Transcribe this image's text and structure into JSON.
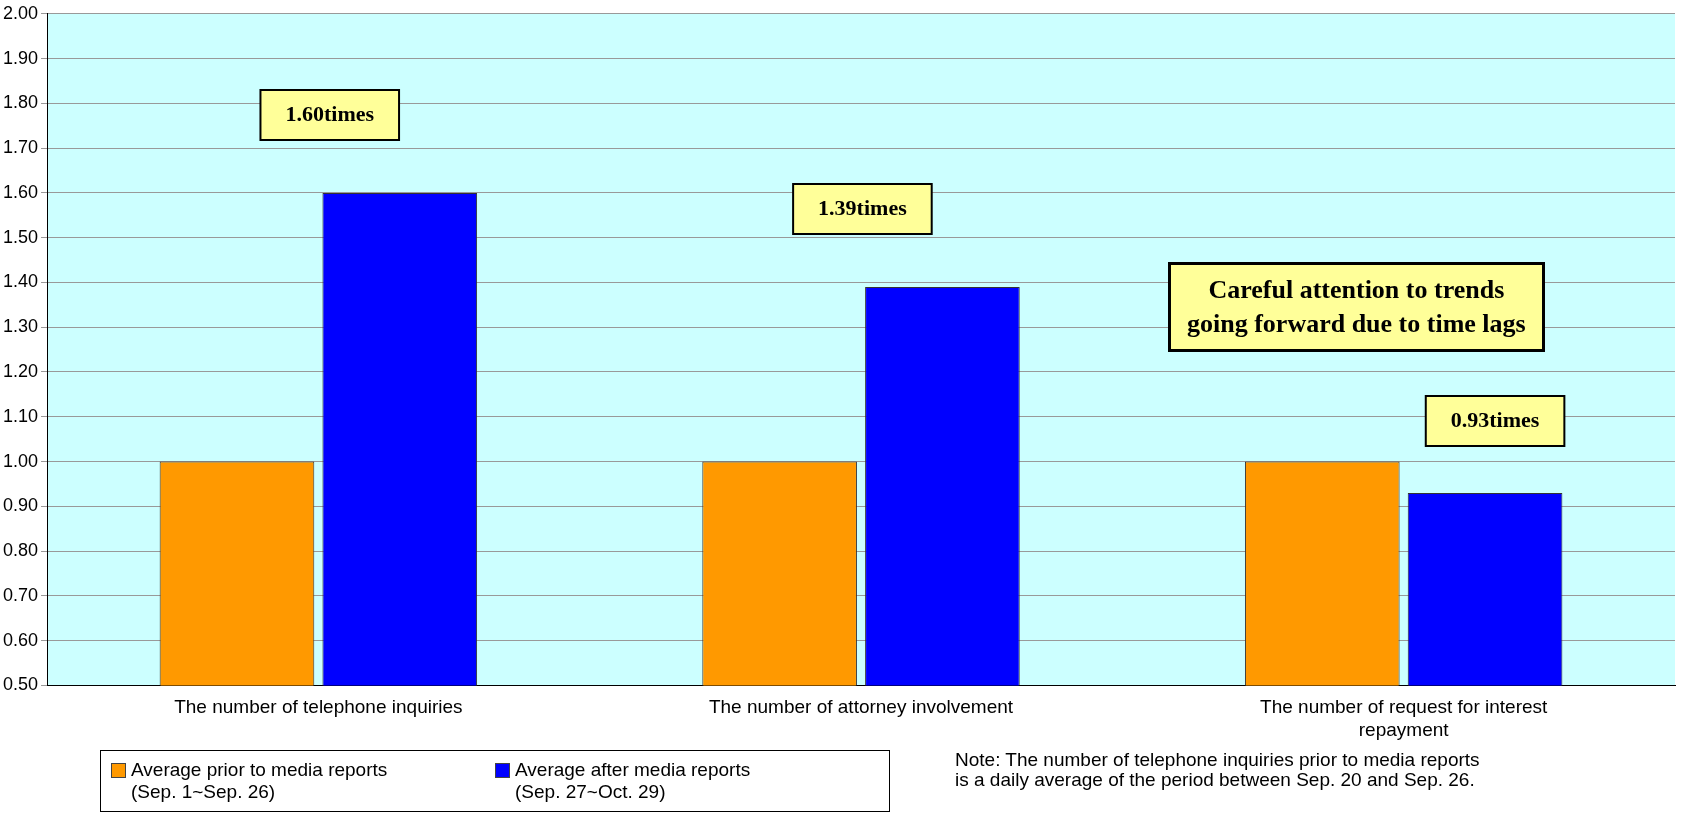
{
  "chart_data": {
    "type": "bar",
    "categories": [
      "The number of telephone inquiries",
      "The number of attorney involvement",
      "The number of request for interest repayment"
    ],
    "series": [
      {
        "name": "Average prior to media reports\n(Sep. 1~Sep. 26)",
        "color": "#ff9900",
        "values": [
          1.0,
          1.0,
          1.0
        ]
      },
      {
        "name": "Average after media reports\n(Sep. 27~Oct. 29)",
        "color": "#0000ff",
        "values": [
          1.6,
          1.39,
          0.93
        ],
        "value_labels": [
          "1.60times",
          "1.39times",
          "0.93times"
        ]
      }
    ],
    "ylim": [
      0.5,
      2.0
    ],
    "yticks": [
      {
        "value": 0.5,
        "label": "0.50"
      },
      {
        "value": 0.6,
        "label": "0.60"
      },
      {
        "value": 0.7,
        "label": "0.70"
      },
      {
        "value": 0.8,
        "label": "0.80"
      },
      {
        "value": 0.9,
        "label": "0.90"
      },
      {
        "value": 1.0,
        "label": "1.00"
      },
      {
        "value": 1.1,
        "label": "1.10"
      },
      {
        "value": 1.2,
        "label": "1.20"
      },
      {
        "value": 1.3,
        "label": "1.30"
      },
      {
        "value": 1.4,
        "label": "1.40"
      },
      {
        "value": 1.5,
        "label": "1.50"
      },
      {
        "value": 1.6,
        "label": "1.60"
      },
      {
        "value": 1.7,
        "label": "1.70"
      },
      {
        "value": 1.8,
        "label": "1.80"
      },
      {
        "value": 1.9,
        "label": "1.90"
      },
      {
        "value": 2.0,
        "label": "2.00"
      }
    ],
    "grid": "y",
    "legend": "bottom left",
    "annotations": [
      "Careful attention to trends\ngoing forward due to time lags",
      "Note: The number of telephone inquiries prior to media reports\nis a daily average of the period between Sep. 20 and Sep. 26."
    ]
  }
}
